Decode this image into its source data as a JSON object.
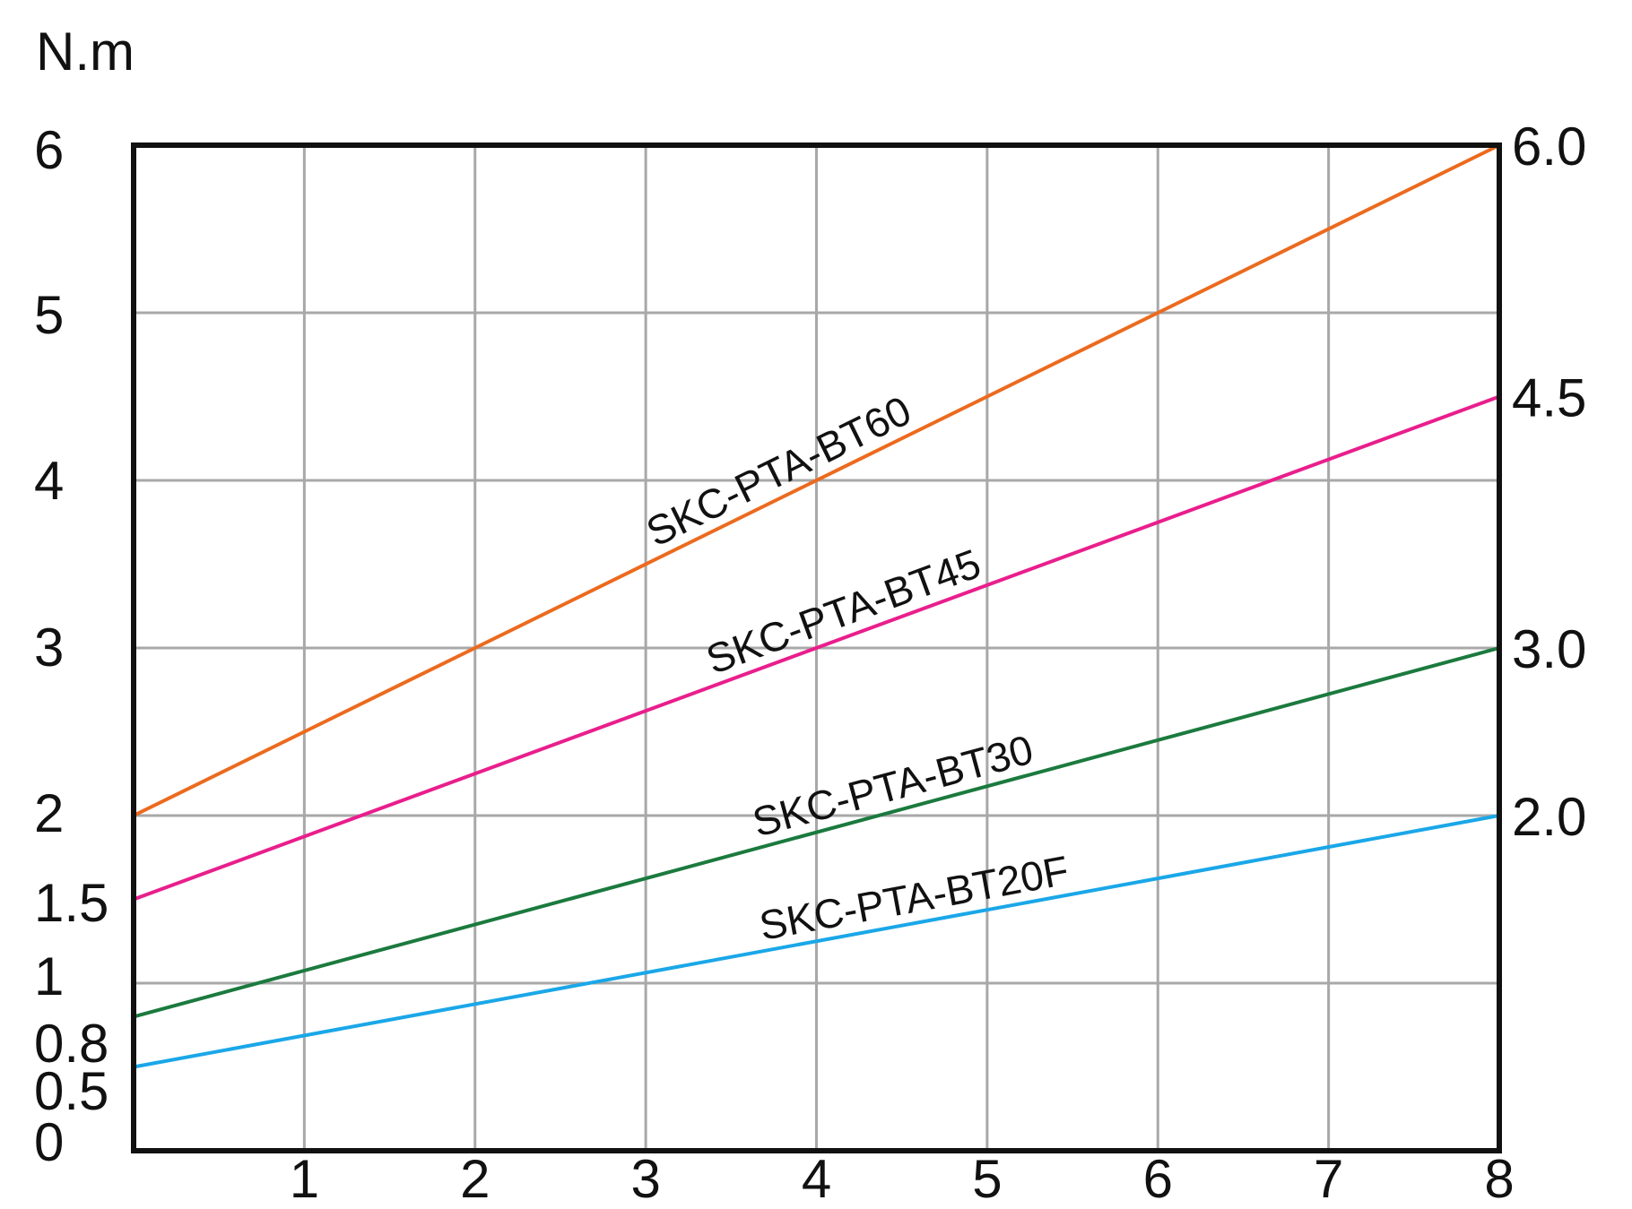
{
  "chart_data": {
    "type": "line",
    "unit_label": "N.m",
    "x_ticks": [
      "1",
      "2",
      "3",
      "4",
      "5",
      "6",
      "7",
      "8"
    ],
    "xlim": [
      0,
      8
    ],
    "ylim": [
      0,
      6
    ],
    "left_ticks": [
      {
        "label": "0",
        "value": 0
      },
      {
        "label": "0.5",
        "value": 0.5
      },
      {
        "label": "0.8",
        "value": 0.8
      },
      {
        "label": "1",
        "value": 1
      },
      {
        "label": "1.5",
        "value": 1.5
      },
      {
        "label": "2",
        "value": 2
      },
      {
        "label": "3",
        "value": 3
      },
      {
        "label": "4",
        "value": 4
      },
      {
        "label": "5",
        "value": 5
      },
      {
        "label": "6",
        "value": 6
      }
    ],
    "right_ticks": [
      {
        "label": "6.0",
        "value": 6
      },
      {
        "label": "4.5",
        "value": 4.5
      },
      {
        "label": "3.0",
        "value": 3
      },
      {
        "label": "2.0",
        "value": 2
      }
    ],
    "grid": true,
    "series": [
      {
        "name": "SKC-PTA-BT60",
        "color": "#ec6a1e",
        "x": [
          0,
          8
        ],
        "y": [
          2,
          6
        ],
        "label_at_x": 4.6
      },
      {
        "name": "SKC-PTA-BT45",
        "color": "#e91e8c",
        "x": [
          0,
          8
        ],
        "y": [
          1.5,
          4.5
        ],
        "label_at_x": 5.0
      },
      {
        "name": "SKC-PTA-BT30",
        "color": "#1b7a3e",
        "x": [
          0,
          8
        ],
        "y": [
          0.8,
          3
        ],
        "label_at_x": 5.3
      },
      {
        "name": "SKC-PTA-BT20F",
        "color": "#1aa7e8",
        "x": [
          0,
          8
        ],
        "y": [
          0.5,
          2
        ],
        "label_at_x": 5.5
      }
    ]
  }
}
